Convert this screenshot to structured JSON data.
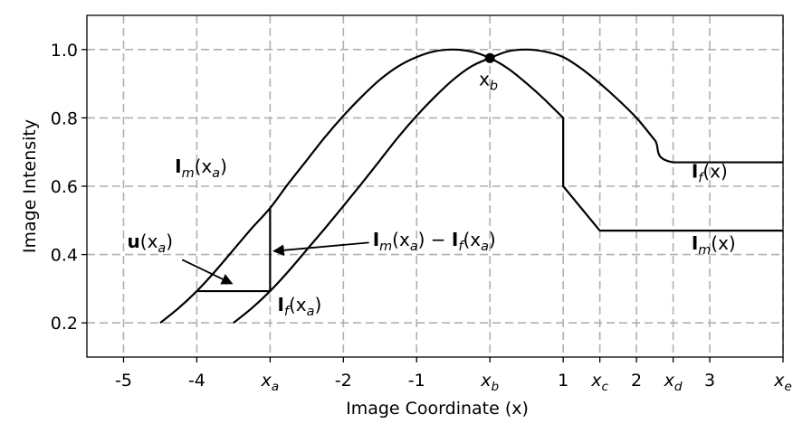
{
  "chart_data": {
    "type": "line",
    "xlabel": "Image Coordinate (x)",
    "ylabel": "Image Intensity",
    "xlim": [
      -5.5,
      4.0
    ],
    "ylim": [
      0.1,
      1.1
    ],
    "grid": true,
    "x_ticks": [
      {
        "value": -5,
        "label": "-5"
      },
      {
        "value": -4,
        "label": "-4"
      },
      {
        "value": -3,
        "label": "x",
        "sub": "a"
      },
      {
        "value": -2,
        "label": "-2"
      },
      {
        "value": -1,
        "label": "-1"
      },
      {
        "value": 0,
        "label": "x",
        "sub": "b"
      },
      {
        "value": 1,
        "label": "1"
      },
      {
        "value": 1.5,
        "label": "x",
        "sub": "c"
      },
      {
        "value": 2,
        "label": "2"
      },
      {
        "value": 2.5,
        "label": "x",
        "sub": "d"
      },
      {
        "value": 3,
        "label": "3"
      },
      {
        "value": 4,
        "label": "x",
        "sub": "e"
      }
    ],
    "y_ticks": [
      {
        "value": 0.2,
        "label": "0.2"
      },
      {
        "value": 0.4,
        "label": "0.4"
      },
      {
        "value": 0.6,
        "label": "0.6"
      },
      {
        "value": 0.8,
        "label": "0.8"
      },
      {
        "value": 1.0,
        "label": "1.0"
      }
    ],
    "series": [
      {
        "id": "Im",
        "x": [
          -4.5,
          -4.25,
          -4.0,
          -3.75,
          -3.5,
          -3.25,
          -3.0,
          -2.75,
          -2.5,
          -2.25,
          -2.0,
          -1.75,
          -1.5,
          -1.25,
          -1.0,
          -0.75,
          -0.5,
          -0.25,
          0.0,
          0.25,
          0.5,
          0.75,
          1.0,
          1.0,
          1.5,
          4.0
        ],
        "y": [
          0.2,
          0.243,
          0.293,
          0.351,
          0.414,
          0.477,
          0.536,
          0.608,
          0.676,
          0.744,
          0.806,
          0.862,
          0.912,
          0.951,
          0.978,
          0.995,
          1.0,
          0.994,
          0.975,
          0.944,
          0.901,
          0.853,
          0.8,
          0.6,
          0.47,
          0.47
        ]
      },
      {
        "id": "If",
        "x": [
          -3.5,
          -3.25,
          -3.0,
          -2.75,
          -2.5,
          -2.25,
          -2.0,
          -1.75,
          -1.5,
          -1.25,
          -1.0,
          -0.75,
          -0.5,
          -0.25,
          0.0,
          0.25,
          0.5,
          0.75,
          1.0,
          1.25,
          1.5,
          1.75,
          2.0,
          2.25,
          2.5,
          4.0
        ],
        "y": [
          0.2,
          0.243,
          0.293,
          0.351,
          0.414,
          0.477,
          0.542,
          0.608,
          0.676,
          0.744,
          0.806,
          0.862,
          0.912,
          0.951,
          0.975,
          0.995,
          1.0,
          0.994,
          0.978,
          0.944,
          0.901,
          0.853,
          0.8,
          0.735,
          0.67,
          0.67
        ]
      }
    ],
    "point": {
      "x": 0,
      "y": 0.975,
      "label": "x",
      "sub": "b"
    },
    "helper_lines": [
      {
        "x": [
          -3,
          -3
        ],
        "y": [
          0.293,
          0.536
        ]
      },
      {
        "x": [
          -4,
          -3
        ],
        "y": [
          0.293,
          0.293
        ]
      }
    ],
    "annotations": [
      {
        "id": "im-xa",
        "x": -4.3,
        "y": 0.64,
        "parts": [
          {
            "t": "I",
            "b": true
          },
          {
            "t": "m",
            "sub": true
          },
          {
            "t": "(x"
          },
          {
            "t": "a",
            "sub": true
          },
          {
            "t": ")"
          }
        ]
      },
      {
        "id": "u-xa",
        "x": -4.95,
        "y": 0.42,
        "parts": [
          {
            "t": "u",
            "b": true
          },
          {
            "t": "(x"
          },
          {
            "t": "a",
            "sub": true
          },
          {
            "t": ")"
          }
        ]
      },
      {
        "id": "if-xa",
        "x": -2.9,
        "y": 0.235,
        "parts": [
          {
            "t": "I",
            "b": true
          },
          {
            "t": "f",
            "sub": true
          },
          {
            "t": "(x"
          },
          {
            "t": "a",
            "sub": true
          },
          {
            "t": ")"
          }
        ]
      },
      {
        "id": "diff",
        "x": -1.6,
        "y": 0.425,
        "parts": [
          {
            "t": "I",
            "b": true
          },
          {
            "t": "m",
            "sub": true
          },
          {
            "t": "(x"
          },
          {
            "t": "a",
            "sub": true
          },
          {
            "t": ") − "
          },
          {
            "t": "I",
            "b": true
          },
          {
            "t": "f",
            "sub": true
          },
          {
            "t": "(x"
          },
          {
            "t": "a",
            "sub": true
          },
          {
            "t": ")"
          }
        ]
      },
      {
        "id": "if-x",
        "x": 2.75,
        "y": 0.625,
        "parts": [
          {
            "t": "I",
            "b": true
          },
          {
            "t": "f",
            "sub": true
          },
          {
            "t": "(x)"
          }
        ]
      },
      {
        "id": "im-x",
        "x": 2.75,
        "y": 0.415,
        "parts": [
          {
            "t": "I",
            "b": true
          },
          {
            "t": "m",
            "sub": true
          },
          {
            "t": "(x)"
          }
        ]
      },
      {
        "id": "xb-point",
        "x": -0.15,
        "y": 0.895,
        "parts": [
          {
            "t": "x"
          },
          {
            "t": "b",
            "sub": true
          }
        ]
      }
    ],
    "arrows": [
      {
        "id": "arrow-u",
        "from": [
          -4.2,
          0.385
        ],
        "to": [
          -3.52,
          0.315
        ]
      },
      {
        "id": "arrow-diff",
        "from": [
          -1.65,
          0.435
        ],
        "to": [
          -2.95,
          0.41
        ]
      }
    ]
  }
}
